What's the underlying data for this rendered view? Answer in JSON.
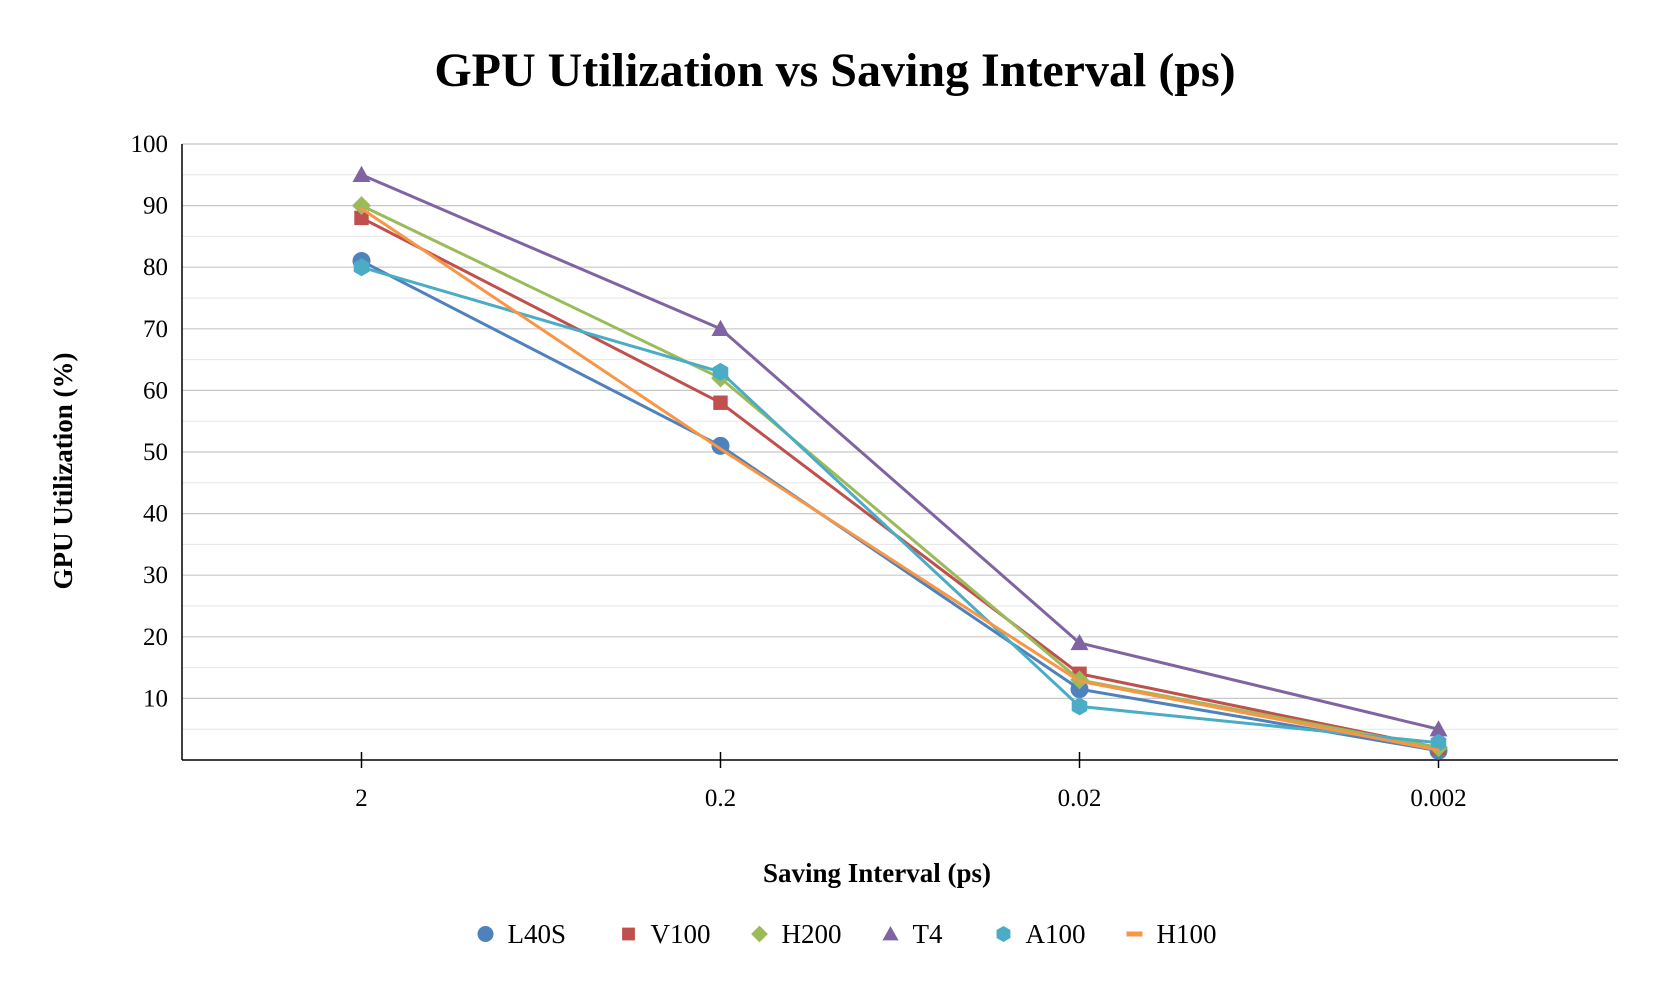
{
  "chart_data": {
    "type": "line",
    "title": "GPU Utilization vs Saving Interval (ps)",
    "xlabel": "Saving Interval (ps)",
    "ylabel": "GPU Utilization (%)",
    "categories": [
      "2",
      "0.2",
      "0.02",
      "0.002"
    ],
    "ylim": [
      0,
      100
    ],
    "yticks": [
      10,
      20,
      30,
      40,
      50,
      60,
      70,
      80,
      90,
      100
    ],
    "grid": true,
    "legend_position": "bottom-center",
    "series": [
      {
        "name": "L40S",
        "marker": "circle",
        "color": "#4F81BD",
        "values": [
          81,
          51,
          11.5,
          1.5
        ]
      },
      {
        "name": "V100",
        "marker": "square",
        "color": "#C0504D",
        "values": [
          88,
          58,
          14,
          2
        ]
      },
      {
        "name": "H200",
        "marker": "diamond",
        "color": "#9BBB59",
        "values": [
          90,
          62,
          13,
          2
        ]
      },
      {
        "name": "T4",
        "marker": "triangle",
        "color": "#8064A2",
        "values": [
          95,
          70,
          19,
          5
        ]
      },
      {
        "name": "A100",
        "marker": "hexagon",
        "color": "#4BACC6",
        "values": [
          80,
          63,
          8.7,
          2.8
        ]
      },
      {
        "name": "H100",
        "marker": "dash",
        "color": "#F79646",
        "values": [
          89.5,
          50.5,
          12.8,
          1.6
        ]
      }
    ]
  }
}
